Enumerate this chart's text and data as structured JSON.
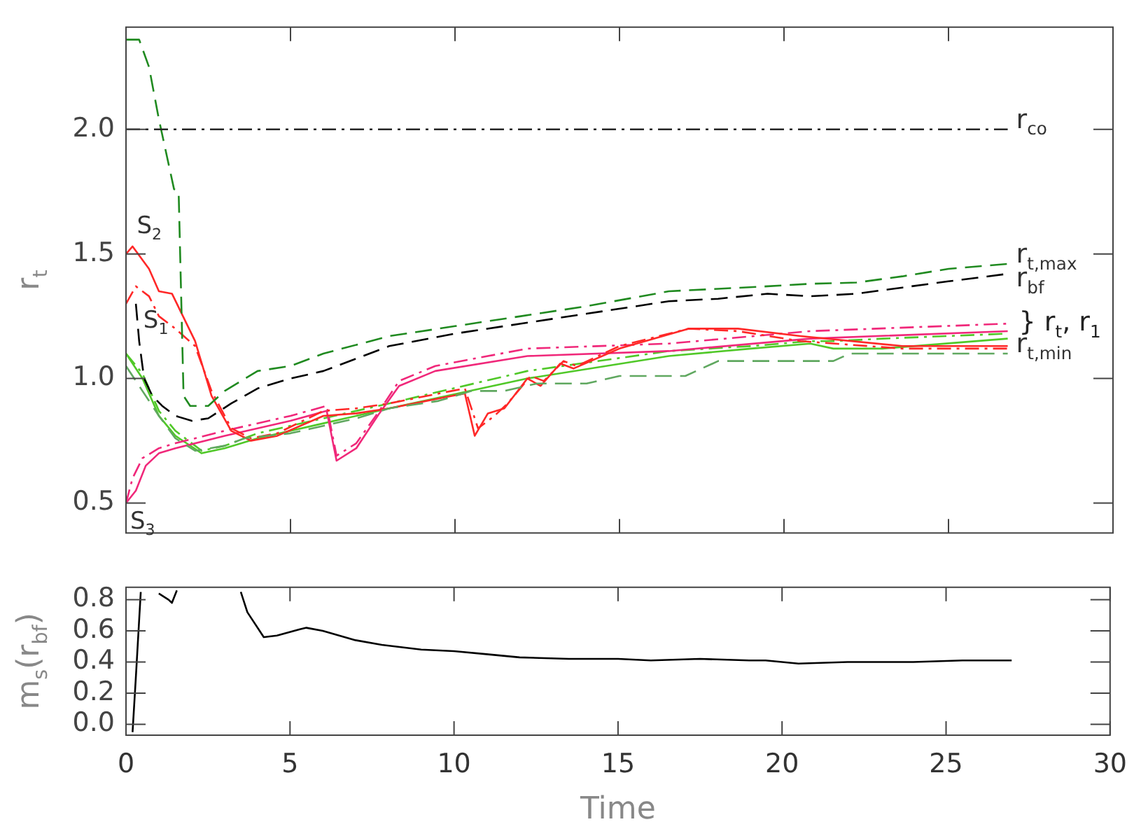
{
  "chart_data": [
    {
      "type": "line",
      "ylabel": "r$_{t}$",
      "xlim": [
        0,
        30
      ],
      "xticks": [
        0,
        5,
        10,
        15,
        20,
        25,
        30
      ],
      "ylim": [
        0.38,
        2.41
      ],
      "yticks": [
        {
          "value": 0.5,
          "label": "0.5"
        },
        {
          "value": 1,
          "label": "1.0"
        },
        {
          "value": 1.5,
          "label": "1.5"
        },
        {
          "value": 2,
          "label": "2.0"
        }
      ],
      "tick_labels": "y",
      "grid": false,
      "legend": false,
      "annotations": [
        {
          "text": "S$_{2}$",
          "x": 0.2,
          "y": 1.53
        },
        {
          "text": "S$_{1}$",
          "x": 0.4,
          "y": 1.15
        },
        {
          "text": "S$_{3}$",
          "x": 0,
          "y": 0.5
        },
        {
          "text": "} r$_{t}$, r$_{1}$",
          "x": 26.8,
          "y": 1.22
        }
      ],
      "series": [
        {
          "name": "r$_{co}$",
          "color": "#262626",
          "line_style": "dotted",
          "x": [
            0,
            26.8
          ],
          "values": [
            2.0,
            2.0
          ]
        },
        {
          "name": "r$_{t,max}$",
          "color": "#208a20",
          "line_style": "dashed",
          "x": [
            0,
            0.4,
            0.7,
            1.0,
            1.46,
            1.6,
            1.75,
            1.95,
            2.5,
            3,
            4,
            5,
            6,
            8,
            10,
            12,
            14,
            16.5,
            18,
            19.5,
            20.8,
            22.2,
            23.6,
            25,
            26.8
          ],
          "values": [
            2.36,
            2.36,
            2.25,
            2.04,
            1.76,
            1.75,
            0.93,
            0.89,
            0.89,
            0.95,
            1.03,
            1.05,
            1.1,
            1.17,
            1.21,
            1.25,
            1.29,
            1.35,
            1.36,
            1.37,
            1.38,
            1.385,
            1.41,
            1.44,
            1.46
          ]
        },
        {
          "name": "r$_{bf}$",
          "color": "#000000",
          "line_style": "dashed",
          "x": [
            0.3,
            0.4,
            0.55,
            0.8,
            1.1,
            1.5,
            2,
            2.5,
            3.2,
            4,
            5,
            6,
            8,
            10,
            12,
            14,
            16.5,
            18,
            19.5,
            20.8,
            22.2,
            23.6,
            25,
            26.8
          ],
          "values": [
            1.3,
            1.15,
            1.0,
            0.93,
            0.89,
            0.85,
            0.83,
            0.84,
            0.9,
            0.96,
            1.0,
            1.03,
            1.13,
            1.18,
            1.22,
            1.26,
            1.31,
            1.32,
            1.34,
            1.33,
            1.34,
            1.365,
            1.39,
            1.42
          ]
        },
        {
          "name": "r$_{t,min}$",
          "color": "#60a860",
          "line_style": "dashed",
          "x": [
            0,
            0.5,
            1,
            1.5,
            2.1,
            3,
            3.6,
            5,
            6,
            7,
            8,
            9.5,
            10.5,
            11.5,
            12.5,
            14,
            15,
            17,
            18,
            21.5,
            22,
            26.8
          ],
          "values": [
            1.05,
            0.95,
            0.85,
            0.76,
            0.71,
            0.73,
            0.76,
            0.78,
            0.81,
            0.84,
            0.88,
            0.91,
            0.95,
            0.95,
            0.98,
            0.98,
            1.01,
            1.01,
            1.07,
            1.07,
            1.1,
            1.1
          ]
        },
        {
          "color": "#ff2828",
          "line_style": "solid",
          "x": [
            0,
            0.2,
            0.7,
            1.0,
            1.4,
            2.1,
            2.6,
            3.2,
            3.8,
            4.6,
            6,
            7,
            8,
            9.9,
            10.3,
            10.6,
            11.0,
            11.5,
            12.2,
            12.6,
            13.2,
            13.6,
            15,
            17.1,
            18.6,
            20.5,
            23.6,
            26.8
          ],
          "values": [
            1.5,
            1.53,
            1.44,
            1.35,
            1.34,
            1.15,
            0.93,
            0.79,
            0.75,
            0.77,
            0.85,
            0.86,
            0.88,
            0.93,
            0.94,
            0.77,
            0.86,
            0.88,
            1.0,
            0.97,
            1.06,
            1.04,
            1.12,
            1.2,
            1.2,
            1.17,
            1.13,
            1.13
          ]
        },
        {
          "color": "#ff2828",
          "line_style": "dotted",
          "x": [
            0,
            0.3,
            0.7,
            1.0,
            1.5,
            2.1,
            2.6,
            3.2,
            3.8,
            4.6,
            6,
            7,
            8,
            9.9,
            10.3,
            10.7,
            11.2,
            11.6,
            12.3,
            12.7,
            13.3,
            13.7,
            15,
            17.1,
            18.6,
            20.5,
            23.6,
            26.8
          ],
          "values": [
            1.3,
            1.37,
            1.33,
            1.25,
            1.2,
            1.13,
            0.95,
            0.8,
            0.76,
            0.78,
            0.87,
            0.88,
            0.9,
            0.95,
            0.96,
            0.8,
            0.85,
            0.9,
            1.01,
            0.99,
            1.07,
            1.05,
            1.13,
            1.2,
            1.19,
            1.15,
            1.12,
            1.12
          ]
        },
        {
          "color": "#f0287a",
          "line_style": "solid",
          "x": [
            0,
            0.3,
            0.6,
            1,
            1.5,
            3,
            5,
            6.1,
            6.4,
            7,
            7.7,
            8.3,
            9.4,
            12.2,
            16.5,
            20.8,
            26.8
          ],
          "values": [
            0.5,
            0.55,
            0.65,
            0.7,
            0.72,
            0.77,
            0.83,
            0.87,
            0.67,
            0.72,
            0.86,
            0.97,
            1.03,
            1.09,
            1.11,
            1.16,
            1.19
          ]
        },
        {
          "color": "#f0287a",
          "line_style": "dotted",
          "x": [
            0,
            0.2,
            0.5,
            1,
            1.5,
            3,
            5,
            6.1,
            6.4,
            7,
            7.7,
            8.3,
            9.4,
            12.2,
            16.5,
            20.8,
            26.8
          ],
          "values": [
            0.5,
            0.6,
            0.68,
            0.72,
            0.74,
            0.79,
            0.85,
            0.89,
            0.69,
            0.74,
            0.87,
            0.99,
            1.05,
            1.12,
            1.14,
            1.19,
            1.22
          ]
        },
        {
          "color": "#50c828",
          "line_style": "solid",
          "x": [
            0,
            0.5,
            1,
            1.5,
            2.3,
            3,
            4,
            6,
            8,
            12.2,
            16.5,
            19,
            20.8,
            21.5,
            23,
            26.8
          ],
          "values": [
            1.1,
            1.0,
            0.85,
            0.77,
            0.7,
            0.72,
            0.76,
            0.82,
            0.88,
            1.0,
            1.09,
            1.12,
            1.14,
            1.12,
            1.12,
            1.16
          ]
        },
        {
          "color": "#50c828",
          "line_style": "dotted",
          "x": [
            0,
            0.5,
            1,
            1.5,
            2.3,
            3,
            4,
            6,
            8,
            12.2,
            16.5,
            19,
            20.8,
            21.5,
            23,
            26.8
          ],
          "values": [
            1.1,
            1.02,
            0.87,
            0.79,
            0.71,
            0.73,
            0.78,
            0.84,
            0.9,
            1.03,
            1.11,
            1.13,
            1.15,
            1.15,
            1.16,
            1.18
          ]
        }
      ]
    },
    {
      "type": "line",
      "xlabel": "Time",
      "ylabel": "m$_{s}$(r$_{bf}$)",
      "xlim": [
        0,
        30
      ],
      "xticks": [
        0,
        5,
        10,
        15,
        20,
        25,
        30
      ],
      "ylim": [
        -0.07,
        0.88
      ],
      "yticks": [
        {
          "value": 0,
          "label": "0.0"
        },
        {
          "value": 0.2,
          "label": "0.2"
        },
        {
          "value": 0.4,
          "label": "0.4"
        },
        {
          "value": 0.6,
          "label": "0.6"
        },
        {
          "value": 0.8,
          "label": "0.8"
        }
      ],
      "grid": false,
      "legend": false,
      "series": [
        {
          "color": "#000000",
          "line_style": "solid",
          "x": [
            0.2,
            0.3,
            0.45,
            0.55,
            1.0,
            1.3,
            1.4,
            1.55,
            1.65,
            3.5,
            3.7,
            4.2,
            4.6,
            5.3,
            5.5,
            6,
            7,
            7.8,
            9,
            10,
            11,
            12,
            13.5,
            15,
            16,
            17.5,
            19,
            19.5,
            20.5,
            22,
            24,
            25.5,
            27
          ],
          "values": [
            -0.05,
            0.3,
            0.85,
            null,
            0.84,
            0.8,
            0.78,
            0.86,
            null,
            0.85,
            0.72,
            0.56,
            0.57,
            0.61,
            0.62,
            0.6,
            0.54,
            0.51,
            0.48,
            0.47,
            0.45,
            0.43,
            0.42,
            0.42,
            0.41,
            0.42,
            0.41,
            0.41,
            0.39,
            0.4,
            0.4,
            0.41,
            0.41
          ]
        }
      ]
    }
  ]
}
